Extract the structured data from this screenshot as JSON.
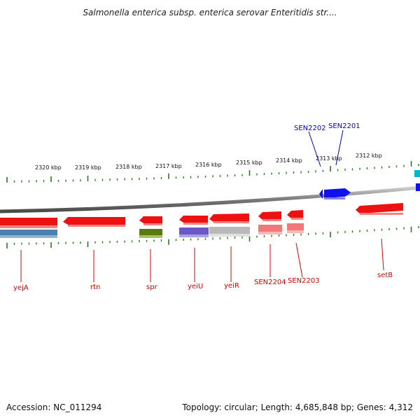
{
  "title": "Salmonella enterica subsp. enterica serovar Enteritidis str....",
  "footer": {
    "accession": "Accession: NC_011294",
    "topology": "Topology: circular; Length: 4,685,848 bp; Genes: 4,312"
  },
  "colors": {
    "backbone": "#8a8a8a",
    "tick": "#2a7a20",
    "red": "#ee0000",
    "blue": "#0000ee",
    "red_label": "#dd0000",
    "blue_label": "#0000cc"
  },
  "ruler_labels": [
    "2320 kbp",
    "2319 kbp",
    "2318 kbp",
    "2317 kbp",
    "2316 kbp",
    "2315 kbp",
    "2314 kbp",
    "2313 kbp",
    "2312 kbp"
  ],
  "gene_labels_bottom": [
    "yejA",
    "rtn",
    "spr",
    "yeiU",
    "yeiR",
    "SEN2204",
    "SEN2203",
    "setB"
  ],
  "gene_labels_top": [
    "SEN2202",
    "SEN2201"
  ]
}
